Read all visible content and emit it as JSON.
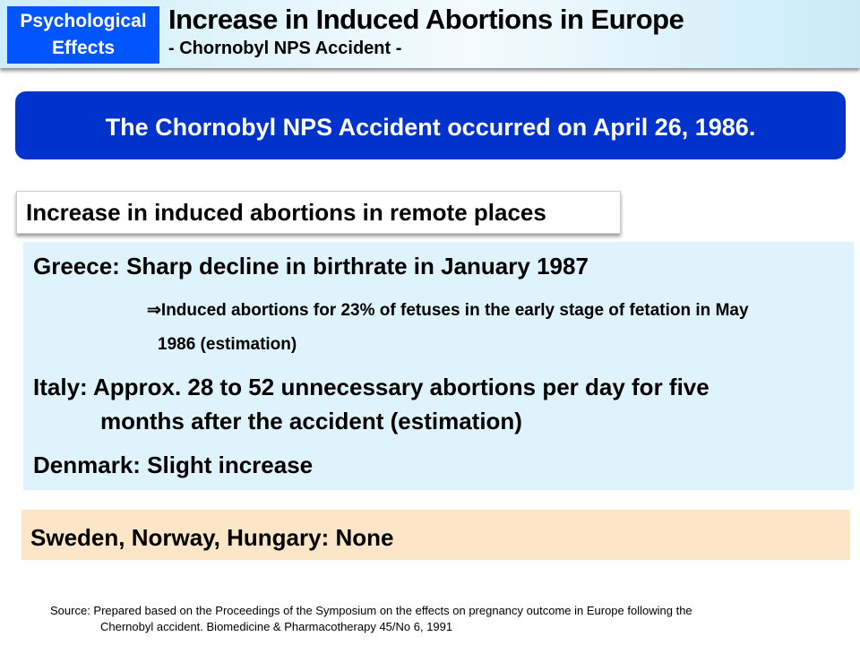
{
  "header": {
    "category": "Psychological Effects",
    "category_line1": "Psychological",
    "category_line2": "Effects",
    "title": "Increase in Induced Abortions in Europe",
    "subtitle": "- Chornobyl NPS Accident -"
  },
  "banner": "The Chornobyl NPS Accident occurred on April 26, 1986.",
  "section_title": "Increase in induced abortions in remote places",
  "items": {
    "greece": "Greece: Sharp decline in birthrate in January 1987",
    "greece_note_1": "⇒Induced abortions for 23% of fetuses in the early stage of fetation in May",
    "greece_note_2": "1986 (estimation)",
    "italy_1": "Italy: Approx. 28 to 52 unnecessary abortions per day for five",
    "italy_2": "months after the accident (estimation)",
    "denmark": "Denmark: Slight increase"
  },
  "none_countries": "Sweden, Norway, Hungary: None",
  "source": {
    "line1": "Source: Prepared based on the Proceedings of the Symposium on the effects on pregnancy outcome in Europe following the",
    "line2": "Chernobyl accident. Biomedicine & Pharmacotherapy 45/No 6, 1991"
  },
  "colors": {
    "category_bg": "#0055ff",
    "banner_bg": "#0033cc",
    "content_bg": "#dff3fd",
    "none_bg": "#fde6c8"
  }
}
